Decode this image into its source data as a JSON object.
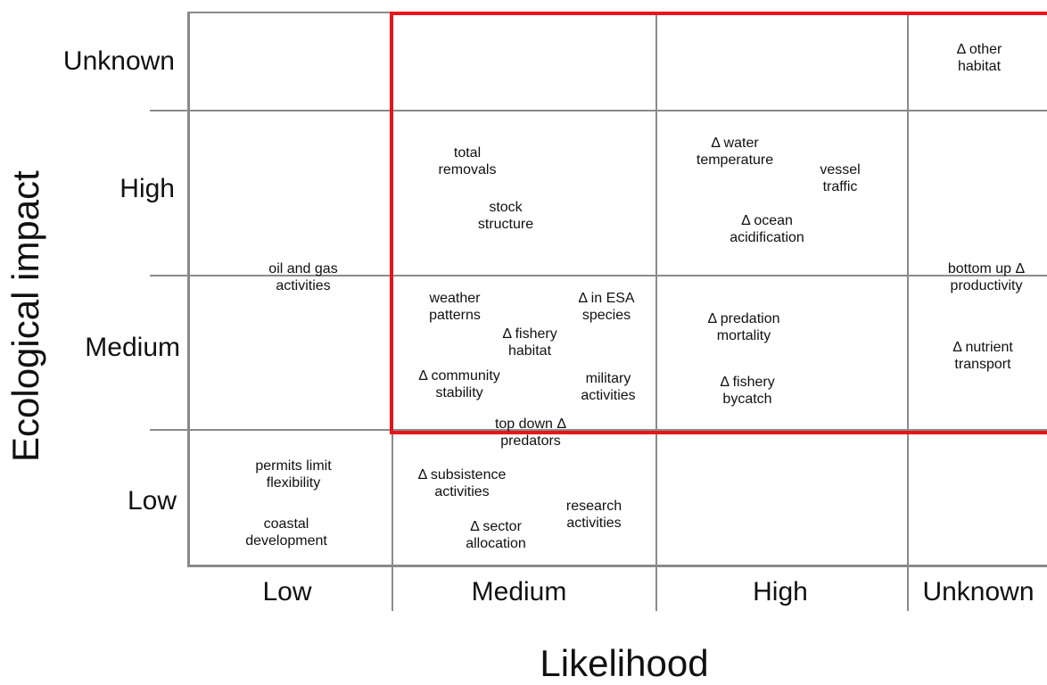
{
  "axes": {
    "y_title": "Ecological impact",
    "x_title": "Likelihood"
  },
  "rows": [
    "Unknown",
    "High",
    "Medium",
    "Low"
  ],
  "columns": [
    "Low",
    "Medium",
    "High",
    "Unknown"
  ],
  "items": [
    {
      "id": "delta-other-habitat",
      "lines": [
        "Δ other",
        "habitat"
      ],
      "likelihood": "Unknown",
      "impact": "Unknown"
    },
    {
      "id": "total-removals",
      "lines": [
        "total",
        "removals"
      ],
      "likelihood": "Medium",
      "impact": "High"
    },
    {
      "id": "stock-structure",
      "lines": [
        "stock",
        "structure"
      ],
      "likelihood": "Medium",
      "impact": "High"
    },
    {
      "id": "delta-water-temperature",
      "lines": [
        "Δ water",
        "temperature"
      ],
      "likelihood": "High",
      "impact": "High"
    },
    {
      "id": "vessel-traffic",
      "lines": [
        "vessel",
        "traffic"
      ],
      "likelihood": "High",
      "impact": "High"
    },
    {
      "id": "delta-ocean-acidification",
      "lines": [
        "Δ ocean",
        "acidification"
      ],
      "likelihood": "High",
      "impact": "High"
    },
    {
      "id": "oil-and-gas-activities",
      "lines": [
        "oil and gas",
        "activities"
      ],
      "likelihood": "Low",
      "impact": "High/Medium"
    },
    {
      "id": "bottom-up-productivity",
      "lines": [
        "bottom up Δ",
        "productivity"
      ],
      "likelihood": "Unknown",
      "impact": "High/Medium"
    },
    {
      "id": "weather-patterns",
      "lines": [
        "weather",
        "patterns"
      ],
      "likelihood": "Medium",
      "impact": "Medium"
    },
    {
      "id": "delta-in-esa-species",
      "lines": [
        "Δ in ESA",
        "species"
      ],
      "likelihood": "Medium",
      "impact": "Medium"
    },
    {
      "id": "delta-fishery-habitat",
      "lines": [
        "Δ fishery",
        "habitat"
      ],
      "likelihood": "Medium",
      "impact": "Medium"
    },
    {
      "id": "delta-community-stability",
      "lines": [
        "Δ community",
        "stability"
      ],
      "likelihood": "Medium",
      "impact": "Medium"
    },
    {
      "id": "military-activities",
      "lines": [
        "military",
        "activities"
      ],
      "likelihood": "Medium",
      "impact": "Medium"
    },
    {
      "id": "top-down-delta-predators",
      "lines": [
        "top down Δ",
        "predators"
      ],
      "likelihood": "Medium",
      "impact": "Medium/Low"
    },
    {
      "id": "delta-predation-mortality",
      "lines": [
        "Δ predation",
        "mortality"
      ],
      "likelihood": "High",
      "impact": "Medium"
    },
    {
      "id": "delta-fishery-bycatch",
      "lines": [
        "Δ fishery",
        "bycatch"
      ],
      "likelihood": "High",
      "impact": "Medium"
    },
    {
      "id": "delta-nutrient-transport",
      "lines": [
        "Δ  nutrient",
        "transport"
      ],
      "likelihood": "Unknown",
      "impact": "Medium"
    },
    {
      "id": "permits-limit-flexibility",
      "lines": [
        "permits limit",
        "flexibility"
      ],
      "likelihood": "Low",
      "impact": "Low"
    },
    {
      "id": "coastal-development",
      "lines": [
        "coastal",
        "development"
      ],
      "likelihood": "Low",
      "impact": "Low"
    },
    {
      "id": "delta-subsistence-activities",
      "lines": [
        "Δ subsistence",
        "activities"
      ],
      "likelihood": "Medium",
      "impact": "Low"
    },
    {
      "id": "research-activities",
      "lines": [
        "research",
        "activities"
      ],
      "likelihood": "Medium",
      "impact": "Low"
    },
    {
      "id": "delta-sector-allocation",
      "lines": [
        "Δ sector",
        "allocation"
      ],
      "likelihood": "Medium",
      "impact": "Low"
    }
  ],
  "highlight": {
    "color": "#e8131b",
    "likelihood": [
      "Medium",
      "High",
      "Unknown"
    ],
    "impact": [
      "Unknown",
      "High",
      "Medium"
    ]
  }
}
